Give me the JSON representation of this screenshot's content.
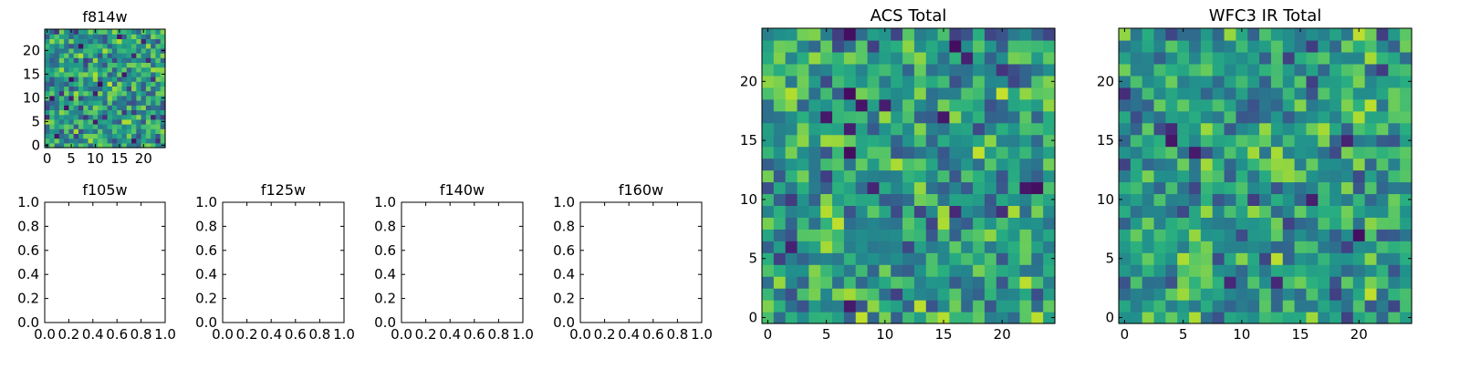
{
  "colormap": {
    "name": "viridis",
    "stops": [
      "#440154",
      "#472878",
      "#3b528b",
      "#2c728e",
      "#21918c",
      "#28ae80",
      "#5ec962",
      "#addc30",
      "#fde725"
    ]
  },
  "chart_data": [
    {
      "id": "f814w",
      "type": "heatmap",
      "title": "f814w",
      "grid_size": [
        25,
        25
      ],
      "xticks": [
        "0",
        "5",
        "10",
        "15",
        "20"
      ],
      "yticks": [
        "0",
        "5",
        "10",
        "15",
        "20"
      ],
      "values_note": "noise-like pixel values, mostly mid/high intensity",
      "values": []
    },
    {
      "id": "f105w",
      "type": "empty",
      "title": "f105w",
      "xlim": [
        0,
        1
      ],
      "ylim": [
        0,
        1
      ],
      "xticks": [
        "0.0",
        "0.2",
        "0.4",
        "0.6",
        "0.8",
        "1.0"
      ],
      "yticks": [
        "0.0",
        "0.2",
        "0.4",
        "0.6",
        "0.8",
        "1.0"
      ]
    },
    {
      "id": "f125w",
      "type": "empty",
      "title": "f125w",
      "xlim": [
        0,
        1
      ],
      "ylim": [
        0,
        1
      ],
      "xticks": [
        "0.0",
        "0.2",
        "0.4",
        "0.6",
        "0.8",
        "1.0"
      ],
      "yticks": [
        "0.0",
        "0.2",
        "0.4",
        "0.6",
        "0.8",
        "1.0"
      ]
    },
    {
      "id": "f140w",
      "type": "empty",
      "title": "f140w",
      "xlim": [
        0,
        1
      ],
      "ylim": [
        0,
        1
      ],
      "xticks": [
        "0.0",
        "0.2",
        "0.4",
        "0.6",
        "0.8",
        "1.0"
      ],
      "yticks": [
        "0.0",
        "0.2",
        "0.4",
        "0.6",
        "0.8",
        "1.0"
      ]
    },
    {
      "id": "f160w",
      "type": "empty",
      "title": "f160w",
      "xlim": [
        0,
        1
      ],
      "ylim": [
        0,
        1
      ],
      "xticks": [
        "0.0",
        "0.2",
        "0.4",
        "0.6",
        "0.8",
        "1.0"
      ],
      "yticks": [
        "0.0",
        "0.2",
        "0.4",
        "0.6",
        "0.8",
        "1.0"
      ]
    },
    {
      "id": "acs_total",
      "type": "heatmap",
      "title": "ACS Total",
      "grid_size": [
        25,
        25
      ],
      "xticks": [
        "0",
        "5",
        "10",
        "15",
        "20"
      ],
      "yticks": [
        "0",
        "5",
        "10",
        "15",
        "20"
      ],
      "values": []
    },
    {
      "id": "wfc3_ir_total",
      "type": "heatmap",
      "title": "WFC3 IR Total",
      "grid_size": [
        25,
        25
      ],
      "xticks": [
        "0",
        "5",
        "10",
        "15",
        "20"
      ],
      "yticks": [
        "0",
        "5",
        "10",
        "15",
        "20"
      ],
      "values": []
    }
  ]
}
